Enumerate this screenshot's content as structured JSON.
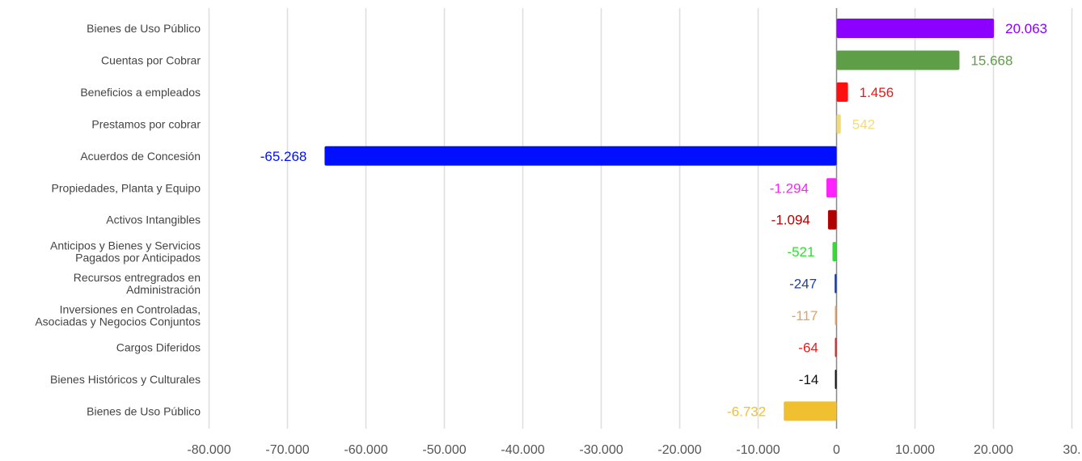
{
  "chart_data": {
    "type": "bar",
    "orientation": "horizontal",
    "title": "",
    "xlabel": "",
    "ylabel": "",
    "xlim": [
      -80000,
      30000
    ],
    "x_ticks": [
      -80000,
      -70000,
      -60000,
      -50000,
      -40000,
      -30000,
      -20000,
      -10000,
      0,
      10000,
      20000,
      30000
    ],
    "x_tick_labels": [
      "-80.000",
      "-70.000",
      "-60.000",
      "-50.000",
      "-40.000",
      "-30.000",
      "-20.000",
      "-10.000",
      "0",
      "10.000",
      "20.000",
      "30."
    ],
    "grid": true,
    "legend": "none",
    "bars": [
      {
        "label": [
          "Bienes de Uso Público"
        ],
        "value": 20063,
        "value_label": "20.063",
        "color": "#8b00ff"
      },
      {
        "label": [
          "Cuentas por Cobrar"
        ],
        "value": 15668,
        "value_label": "15.668",
        "color": "#5e9e47"
      },
      {
        "label": [
          "Beneficios a empleados"
        ],
        "value": 1456,
        "value_label": "1.456",
        "color": "#ff1010"
      },
      {
        "label": [
          "Prestamos por cobrar"
        ],
        "value": 542,
        "value_label": "542",
        "color": "#f2dc7a"
      },
      {
        "label": [
          "Acuerdos de Concesión"
        ],
        "value": -65268,
        "value_label": "-65.268",
        "color": "#0010ff"
      },
      {
        "label": [
          "Propiedades, Planta y Equipo"
        ],
        "value": -1294,
        "value_label": "-1.294",
        "color": "#ff22ff"
      },
      {
        "label": [
          "Activos Intangibles"
        ],
        "value": -1094,
        "value_label": "-1.094",
        "color": "#b00000"
      },
      {
        "label": [
          "Anticipos y Bienes y Servicios",
          "Pagados por Anticipados"
        ],
        "value": -521,
        "value_label": "-521",
        "color": "#33dd33"
      },
      {
        "label": [
          "Recursos entregrados en",
          "Administración"
        ],
        "value": -247,
        "value_label": "-247",
        "color": "#1a3fb0"
      },
      {
        "label": [
          "Inversiones en Controladas,",
          "Asociadas y Negocios Conjuntos"
        ],
        "value": -117,
        "value_label": "-117",
        "color": "#e8a060"
      },
      {
        "label": [
          "Cargos Diferidos"
        ],
        "value": -64,
        "value_label": "-64",
        "color": "#dd2222"
      },
      {
        "label": [
          "Bienes Históricos y Culturales"
        ],
        "value": -14,
        "value_label": "-14",
        "color": "#111111"
      },
      {
        "label": [
          "Bienes de Uso Público"
        ],
        "value": -6732,
        "value_label": "-6.732",
        "color": "#f0c030"
      }
    ]
  }
}
